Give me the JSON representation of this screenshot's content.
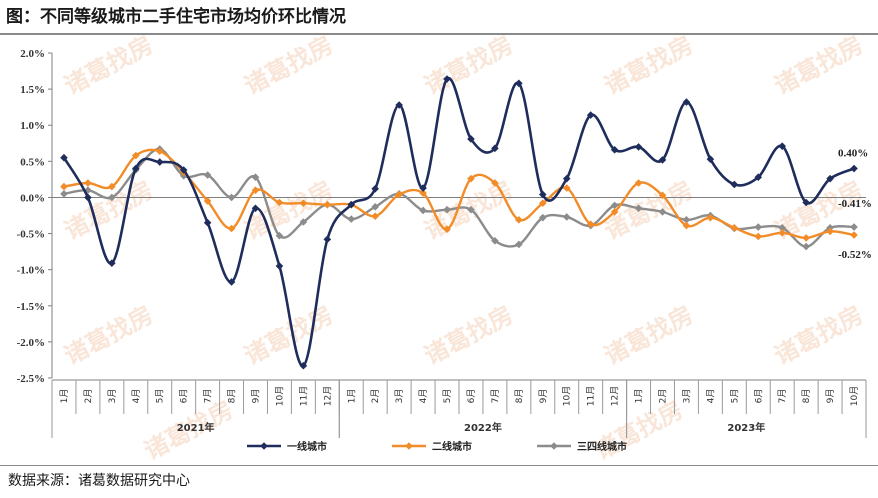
{
  "title": "图：不同等级城市二手住宅市场均价环比情况",
  "source": "数据来源：诸葛数据研究中心",
  "watermark": "诸葛找房",
  "chart_data": {
    "type": "line",
    "title": "图：不同等级城市二手住宅市场均价环比情况",
    "yticks": [
      "2.0%",
      "1.5%",
      "1.0%",
      "0.5%",
      "0.0%",
      "-0.5%",
      "-1.0%",
      "-1.5%",
      "-2.0%",
      "-2.5%"
    ],
    "ylim": [
      -2.5,
      2.0
    ],
    "categories": [
      "1月",
      "2月",
      "3月",
      "4月",
      "5月",
      "6月",
      "7月",
      "8月",
      "9月",
      "10月",
      "11月",
      "12月",
      "1月",
      "2月",
      "3月",
      "4月",
      "5月",
      "6月",
      "7月",
      "8月",
      "9月",
      "10月",
      "11月",
      "12月",
      "1月",
      "2月",
      "3月",
      "4月",
      "5月",
      "6月",
      "7月",
      "8月",
      "9月",
      "10月"
    ],
    "years": [
      {
        "label": "2021年",
        "start": 0,
        "end": 11
      },
      {
        "label": "2022年",
        "start": 12,
        "end": 23
      },
      {
        "label": "2023年",
        "start": 24,
        "end": 33
      }
    ],
    "series": [
      {
        "name": "一线城市",
        "color": "#1f2d5c",
        "marker": "diamond",
        "values": [
          0.55,
          0.0,
          -0.91,
          0.4,
          0.49,
          0.38,
          -0.35,
          -1.17,
          -0.15,
          -0.95,
          -2.33,
          -0.58,
          -0.1,
          0.12,
          1.28,
          0.13,
          1.64,
          0.81,
          0.68,
          1.58,
          0.04,
          0.26,
          1.14,
          0.66,
          0.7,
          0.52,
          1.32,
          0.53,
          0.18,
          0.28,
          0.71,
          -0.07,
          0.26,
          0.4
        ]
      },
      {
        "name": "二线城市",
        "color": "#f28c28",
        "marker": "diamond",
        "values": [
          0.15,
          0.2,
          0.15,
          0.58,
          0.64,
          0.35,
          -0.05,
          -0.43,
          0.1,
          -0.07,
          -0.08,
          -0.1,
          -0.1,
          -0.26,
          0.04,
          0.06,
          -0.44,
          0.26,
          0.2,
          -0.31,
          -0.08,
          0.13,
          -0.37,
          -0.2,
          0.2,
          0.03,
          -0.39,
          -0.28,
          -0.42,
          -0.54,
          -0.49,
          -0.56,
          -0.47,
          -0.52
        ]
      },
      {
        "name": "三四线城市",
        "color": "#8c8c8c",
        "marker": "diamond",
        "values": [
          0.05,
          0.1,
          0.0,
          0.38,
          0.67,
          0.3,
          0.31,
          0.0,
          0.28,
          -0.53,
          -0.34,
          -0.1,
          -0.3,
          -0.13,
          0.05,
          -0.18,
          -0.17,
          -0.17,
          -0.6,
          -0.65,
          -0.28,
          -0.27,
          -0.39,
          -0.11,
          -0.15,
          -0.2,
          -0.31,
          -0.25,
          -0.43,
          -0.41,
          -0.42,
          -0.68,
          -0.42,
          -0.41
        ]
      }
    ],
    "end_labels": [
      "0.40%",
      "-0.41%",
      "-0.52%"
    ],
    "legend_position": "bottom",
    "grid": false
  }
}
